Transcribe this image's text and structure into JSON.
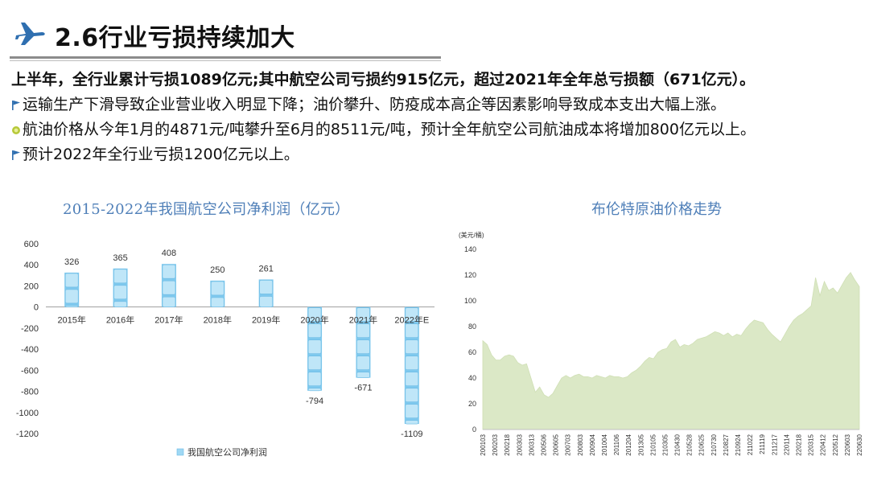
{
  "header": {
    "title": "2.6行业亏损持续加大",
    "icon": "airplane-icon"
  },
  "bullets": {
    "line1": "上半年，全行业累计亏损1089亿元;其中航空公司亏损约915亿元，超过2021年全年总亏损额（671亿元）。",
    "line2": "运输生产下滑导致企业营业收入明显下降；油价攀升、防疫成本高企等因素影响导致成本支出大幅上涨。",
    "line3": "航油价格从今年1月的4871元/吨攀升至6月的8511元/吨，预计全年航空公司航油成本将增加800亿元以上。",
    "line4": "预计2022年全行业亏损1200亿元以上。"
  },
  "chart_data": [
    {
      "type": "bar",
      "title": "2015-2022年我国航空公司净利润（亿元）",
      "categories": [
        "2015年",
        "2016年",
        "2017年",
        "2018年",
        "2019年",
        "2020年",
        "2021年",
        "2022年E"
      ],
      "series": [
        {
          "name": "我国航空公司净利润",
          "values": [
            326,
            365,
            408,
            250,
            261,
            -794,
            -671,
            -1109
          ],
          "color": "#7fc9ee"
        }
      ],
      "value_labels": [
        "326",
        "365",
        "408",
        "250",
        "261",
        "-794",
        "-671",
        "-1109"
      ],
      "yticks": [
        "600",
        "400",
        "200",
        "0",
        "-200",
        "-400",
        "-600",
        "-800",
        "-1000",
        "-1200"
      ],
      "ylim": [
        -1200,
        600
      ],
      "legend": "bottom"
    },
    {
      "type": "area",
      "title": "布伦特原油价格走势",
      "ylabel": "(美元/桶)",
      "ylim": [
        0,
        140
      ],
      "yticks": [
        "0",
        "20",
        "40",
        "60",
        "80",
        "100",
        "120",
        "140"
      ],
      "xticks": [
        "200103",
        "200203",
        "200218",
        "200303",
        "200313",
        "200506",
        "200605",
        "200703",
        "200803",
        "200904",
        "201004",
        "201106",
        "201204",
        "201305",
        "210105",
        "210305",
        "210430",
        "210528",
        "210625",
        "210730",
        "210827",
        "210924",
        "211022",
        "211119",
        "211217",
        "220114",
        "220218",
        "220315",
        "220412",
        "220512",
        "220603",
        "220630"
      ],
      "values": [
        69,
        66,
        58,
        54,
        54,
        57,
        58,
        57,
        52,
        50,
        51,
        40,
        29,
        33,
        27,
        25,
        28,
        34,
        40,
        42,
        40,
        42,
        43,
        41,
        41,
        40,
        42,
        41,
        40,
        42,
        41,
        41,
        40,
        41,
        44,
        46,
        49,
        53,
        56,
        55,
        60,
        62,
        63,
        68,
        70,
        64,
        66,
        65,
        67,
        70,
        71,
        72,
        74,
        76,
        75,
        73,
        75,
        72,
        74,
        73,
        78,
        82,
        85,
        84,
        83,
        78,
        74,
        71,
        68,
        74,
        80,
        85,
        88,
        90,
        93,
        96,
        118,
        104,
        115,
        108,
        110,
        106,
        112,
        118,
        122,
        116,
        111
      ],
      "color": "#dbe8c6"
    }
  ]
}
